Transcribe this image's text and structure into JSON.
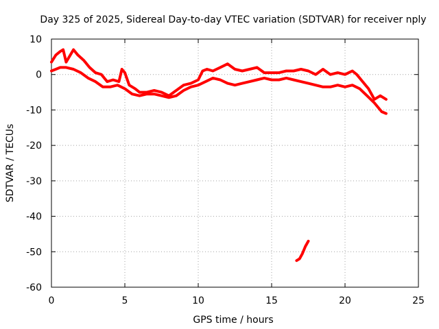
{
  "chart_data": {
    "type": "line",
    "title": "Day 325 of 2025, Sidereal Day-to-day VTEC variation (SDTVAR) for receiver nply",
    "xlabel": "GPS time / hours",
    "ylabel": "SDTVAR / TECUs",
    "xlim": [
      0,
      25
    ],
    "ylim": [
      -60,
      10
    ],
    "grid": true,
    "xticks": [
      0,
      5,
      10,
      15,
      20,
      25
    ],
    "yticks": [
      10,
      0,
      -10,
      -20,
      -30,
      -40,
      -50,
      -60
    ],
    "series_color": "#ff0000",
    "series": [
      {
        "name": "main-trace-upper",
        "x": [
          0.0,
          0.3,
          0.6,
          0.8,
          1.0,
          1.5,
          1.8,
          2.2,
          2.6,
          3.0,
          3.4,
          3.8,
          4.2,
          4.6,
          4.8,
          5.0,
          5.3,
          5.7,
          6.0,
          6.5,
          7.0,
          7.5,
          8.0,
          8.5,
          9.0,
          9.5,
          10.0,
          10.3,
          10.6,
          11.0,
          11.5,
          12.0,
          12.5,
          13.0,
          13.5,
          14.0,
          14.5,
          15.0,
          15.5,
          16.0,
          16.5,
          17.0,
          17.5,
          18.0,
          18.5,
          19.0,
          19.5,
          20.0,
          20.5,
          20.8,
          21.2,
          21.6,
          22.0,
          22.4,
          22.8
        ],
        "values": [
          3.5,
          5.5,
          6.5,
          7.0,
          3.5,
          7.0,
          5.5,
          4.0,
          2.0,
          0.5,
          0.0,
          -2.0,
          -1.5,
          -2.0,
          1.5,
          0.5,
          -3.0,
          -4.0,
          -5.0,
          -5.0,
          -4.5,
          -5.0,
          -6.0,
          -4.5,
          -3.0,
          -2.5,
          -1.5,
          1.0,
          1.5,
          1.0,
          2.0,
          3.0,
          1.5,
          1.0,
          1.5,
          2.0,
          0.5,
          0.5,
          0.5,
          1.0,
          1.0,
          1.5,
          1.0,
          0.0,
          1.5,
          0.0,
          0.5,
          0.0,
          1.0,
          0.0,
          -2.0,
          -4.0,
          -7.0,
          -6.0,
          -7.0
        ]
      },
      {
        "name": "main-trace-lower",
        "x": [
          0.0,
          0.3,
          0.6,
          1.0,
          1.5,
          2.0,
          2.5,
          3.0,
          3.5,
          4.0,
          4.5,
          5.0,
          5.5,
          6.0,
          6.5,
          7.0,
          7.5,
          8.0,
          8.5,
          9.0,
          9.5,
          10.0,
          10.5,
          11.0,
          11.5,
          12.0,
          12.5,
          13.0,
          13.5,
          14.0,
          14.5,
          15.0,
          15.5,
          16.0,
          16.5,
          17.0,
          17.5,
          18.0,
          18.5,
          19.0,
          19.5,
          20.0,
          20.5,
          21.0,
          21.5,
          22.0,
          22.5,
          22.8
        ],
        "values": [
          1.0,
          1.5,
          2.0,
          2.0,
          1.5,
          0.5,
          -1.0,
          -2.0,
          -3.5,
          -3.5,
          -3.0,
          -4.0,
          -5.5,
          -6.0,
          -5.5,
          -5.5,
          -6.0,
          -6.5,
          -6.0,
          -4.5,
          -3.5,
          -3.0,
          -2.0,
          -1.0,
          -1.5,
          -2.5,
          -3.0,
          -2.5,
          -2.0,
          -1.5,
          -1.0,
          -1.5,
          -1.5,
          -1.0,
          -1.5,
          -2.0,
          -2.5,
          -3.0,
          -3.5,
          -3.5,
          -3.0,
          -3.5,
          -3.0,
          -4.0,
          -6.0,
          -8.0,
          -10.5,
          -11.0
        ]
      },
      {
        "name": "outlier-segment",
        "x": [
          16.7,
          16.9,
          17.1,
          17.3,
          17.5
        ],
        "values": [
          -52.5,
          -52.0,
          -50.5,
          -48.5,
          -47.0
        ]
      }
    ]
  }
}
